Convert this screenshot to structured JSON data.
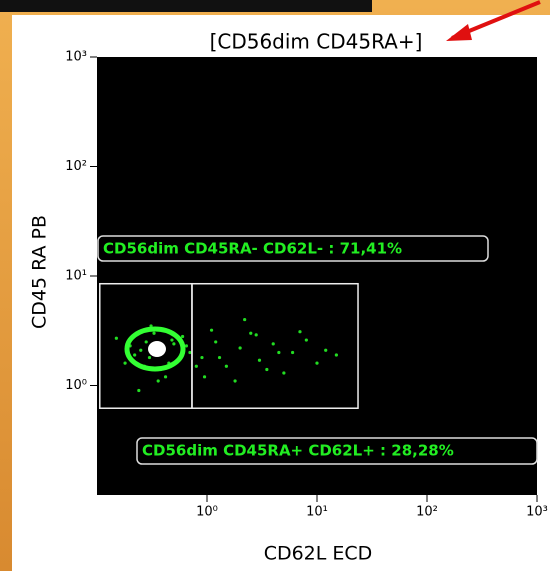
{
  "chart_data": {
    "type": "scatter",
    "title": "[CD56dim CD45RA+]",
    "x_label": "CD62L ECD",
    "y_label": "CD45 RA PB",
    "log_x": true,
    "log_y": true,
    "xlim": [
      0.1,
      1000
    ],
    "ylim": [
      0.1,
      1000
    ],
    "xticks": [
      {
        "value": 1,
        "label": "10⁰"
      },
      {
        "value": 10,
        "label": "10¹"
      },
      {
        "value": 100,
        "label": "10²"
      },
      {
        "value": 1000,
        "label": "10³"
      }
    ],
    "yticks": [
      {
        "value": 1,
        "label": "10⁰"
      },
      {
        "value": 10,
        "label": "10¹"
      },
      {
        "value": 100,
        "label": "10²"
      },
      {
        "value": 1000,
        "label": "10³"
      }
    ],
    "color": "#22dd22",
    "x": [
      0.35,
      0.3,
      0.4,
      0.28,
      0.45,
      0.33,
      0.38,
      0.25,
      0.5,
      0.42,
      0.22,
      0.6,
      0.36,
      0.31,
      0.55,
      0.27,
      0.48,
      0.2,
      0.7,
      0.9,
      1.2,
      1.5,
      2,
      2.5,
      3,
      4,
      5,
      6,
      8,
      10,
      12,
      15,
      1.1,
      1.8,
      2.2,
      3.5,
      0.8,
      0.65,
      7,
      0.18,
      0.15,
      0.24,
      1.3,
      2.8,
      0.95,
      4.5
    ],
    "values": [
      2,
      1.8,
      2.2,
      2.5,
      1.6,
      3,
      1.4,
      2.1,
      2.4,
      1.2,
      1.9,
      2.8,
      1.1,
      3.5,
      1.7,
      1.5,
      2.6,
      2.3,
      2,
      1.8,
      2.5,
      1.5,
      2.2,
      3,
      1.7,
      2.4,
      1.3,
      2,
      2.6,
      1.6,
      2.1,
      1.9,
      3.2,
      1.1,
      4,
      1.4,
      1.5,
      2.3,
      3.1,
      1.6,
      2.7,
      0.9,
      1.8,
      2.9,
      1.2,
      2
    ],
    "gates": [
      {
        "label": "CD56dim CD45RA- CD62L- : 71,41%",
        "x": [
          0.106,
          0.73
        ],
        "y": [
          0.62,
          8.5
        ]
      },
      {
        "label": "CD56dim CD45RA+ CD62L+ : 28,28%",
        "x": [
          0.73,
          23.6
        ],
        "y": [
          0.62,
          8.5
        ]
      }
    ]
  }
}
